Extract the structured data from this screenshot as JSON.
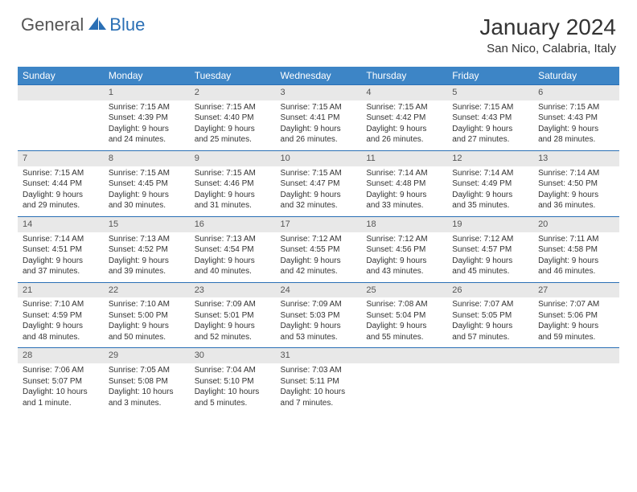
{
  "header": {
    "logo_general": "General",
    "logo_blue": "Blue",
    "month_title": "January 2024",
    "location": "San Nico, Calabria, Italy"
  },
  "colors": {
    "header_bg": "#3d85c6",
    "header_text": "#ffffff",
    "daynum_bg": "#e8e8e8",
    "rule": "#2a6fb5",
    "logo_blue": "#2a6fb5",
    "logo_gray": "#555555"
  },
  "weekdays": [
    "Sunday",
    "Monday",
    "Tuesday",
    "Wednesday",
    "Thursday",
    "Friday",
    "Saturday"
  ],
  "weeks": [
    [
      null,
      {
        "n": "1",
        "sunrise": "Sunrise: 7:15 AM",
        "sunset": "Sunset: 4:39 PM",
        "d1": "Daylight: 9 hours",
        "d2": "and 24 minutes."
      },
      {
        "n": "2",
        "sunrise": "Sunrise: 7:15 AM",
        "sunset": "Sunset: 4:40 PM",
        "d1": "Daylight: 9 hours",
        "d2": "and 25 minutes."
      },
      {
        "n": "3",
        "sunrise": "Sunrise: 7:15 AM",
        "sunset": "Sunset: 4:41 PM",
        "d1": "Daylight: 9 hours",
        "d2": "and 26 minutes."
      },
      {
        "n": "4",
        "sunrise": "Sunrise: 7:15 AM",
        "sunset": "Sunset: 4:42 PM",
        "d1": "Daylight: 9 hours",
        "d2": "and 26 minutes."
      },
      {
        "n": "5",
        "sunrise": "Sunrise: 7:15 AM",
        "sunset": "Sunset: 4:43 PM",
        "d1": "Daylight: 9 hours",
        "d2": "and 27 minutes."
      },
      {
        "n": "6",
        "sunrise": "Sunrise: 7:15 AM",
        "sunset": "Sunset: 4:43 PM",
        "d1": "Daylight: 9 hours",
        "d2": "and 28 minutes."
      }
    ],
    [
      {
        "n": "7",
        "sunrise": "Sunrise: 7:15 AM",
        "sunset": "Sunset: 4:44 PM",
        "d1": "Daylight: 9 hours",
        "d2": "and 29 minutes."
      },
      {
        "n": "8",
        "sunrise": "Sunrise: 7:15 AM",
        "sunset": "Sunset: 4:45 PM",
        "d1": "Daylight: 9 hours",
        "d2": "and 30 minutes."
      },
      {
        "n": "9",
        "sunrise": "Sunrise: 7:15 AM",
        "sunset": "Sunset: 4:46 PM",
        "d1": "Daylight: 9 hours",
        "d2": "and 31 minutes."
      },
      {
        "n": "10",
        "sunrise": "Sunrise: 7:15 AM",
        "sunset": "Sunset: 4:47 PM",
        "d1": "Daylight: 9 hours",
        "d2": "and 32 minutes."
      },
      {
        "n": "11",
        "sunrise": "Sunrise: 7:14 AM",
        "sunset": "Sunset: 4:48 PM",
        "d1": "Daylight: 9 hours",
        "d2": "and 33 minutes."
      },
      {
        "n": "12",
        "sunrise": "Sunrise: 7:14 AM",
        "sunset": "Sunset: 4:49 PM",
        "d1": "Daylight: 9 hours",
        "d2": "and 35 minutes."
      },
      {
        "n": "13",
        "sunrise": "Sunrise: 7:14 AM",
        "sunset": "Sunset: 4:50 PM",
        "d1": "Daylight: 9 hours",
        "d2": "and 36 minutes."
      }
    ],
    [
      {
        "n": "14",
        "sunrise": "Sunrise: 7:14 AM",
        "sunset": "Sunset: 4:51 PM",
        "d1": "Daylight: 9 hours",
        "d2": "and 37 minutes."
      },
      {
        "n": "15",
        "sunrise": "Sunrise: 7:13 AM",
        "sunset": "Sunset: 4:52 PM",
        "d1": "Daylight: 9 hours",
        "d2": "and 39 minutes."
      },
      {
        "n": "16",
        "sunrise": "Sunrise: 7:13 AM",
        "sunset": "Sunset: 4:54 PM",
        "d1": "Daylight: 9 hours",
        "d2": "and 40 minutes."
      },
      {
        "n": "17",
        "sunrise": "Sunrise: 7:12 AM",
        "sunset": "Sunset: 4:55 PM",
        "d1": "Daylight: 9 hours",
        "d2": "and 42 minutes."
      },
      {
        "n": "18",
        "sunrise": "Sunrise: 7:12 AM",
        "sunset": "Sunset: 4:56 PM",
        "d1": "Daylight: 9 hours",
        "d2": "and 43 minutes."
      },
      {
        "n": "19",
        "sunrise": "Sunrise: 7:12 AM",
        "sunset": "Sunset: 4:57 PM",
        "d1": "Daylight: 9 hours",
        "d2": "and 45 minutes."
      },
      {
        "n": "20",
        "sunrise": "Sunrise: 7:11 AM",
        "sunset": "Sunset: 4:58 PM",
        "d1": "Daylight: 9 hours",
        "d2": "and 46 minutes."
      }
    ],
    [
      {
        "n": "21",
        "sunrise": "Sunrise: 7:10 AM",
        "sunset": "Sunset: 4:59 PM",
        "d1": "Daylight: 9 hours",
        "d2": "and 48 minutes."
      },
      {
        "n": "22",
        "sunrise": "Sunrise: 7:10 AM",
        "sunset": "Sunset: 5:00 PM",
        "d1": "Daylight: 9 hours",
        "d2": "and 50 minutes."
      },
      {
        "n": "23",
        "sunrise": "Sunrise: 7:09 AM",
        "sunset": "Sunset: 5:01 PM",
        "d1": "Daylight: 9 hours",
        "d2": "and 52 minutes."
      },
      {
        "n": "24",
        "sunrise": "Sunrise: 7:09 AM",
        "sunset": "Sunset: 5:03 PM",
        "d1": "Daylight: 9 hours",
        "d2": "and 53 minutes."
      },
      {
        "n": "25",
        "sunrise": "Sunrise: 7:08 AM",
        "sunset": "Sunset: 5:04 PM",
        "d1": "Daylight: 9 hours",
        "d2": "and 55 minutes."
      },
      {
        "n": "26",
        "sunrise": "Sunrise: 7:07 AM",
        "sunset": "Sunset: 5:05 PM",
        "d1": "Daylight: 9 hours",
        "d2": "and 57 minutes."
      },
      {
        "n": "27",
        "sunrise": "Sunrise: 7:07 AM",
        "sunset": "Sunset: 5:06 PM",
        "d1": "Daylight: 9 hours",
        "d2": "and 59 minutes."
      }
    ],
    [
      {
        "n": "28",
        "sunrise": "Sunrise: 7:06 AM",
        "sunset": "Sunset: 5:07 PM",
        "d1": "Daylight: 10 hours",
        "d2": "and 1 minute."
      },
      {
        "n": "29",
        "sunrise": "Sunrise: 7:05 AM",
        "sunset": "Sunset: 5:08 PM",
        "d1": "Daylight: 10 hours",
        "d2": "and 3 minutes."
      },
      {
        "n": "30",
        "sunrise": "Sunrise: 7:04 AM",
        "sunset": "Sunset: 5:10 PM",
        "d1": "Daylight: 10 hours",
        "d2": "and 5 minutes."
      },
      {
        "n": "31",
        "sunrise": "Sunrise: 7:03 AM",
        "sunset": "Sunset: 5:11 PM",
        "d1": "Daylight: 10 hours",
        "d2": "and 7 minutes."
      },
      null,
      null,
      null
    ]
  ]
}
